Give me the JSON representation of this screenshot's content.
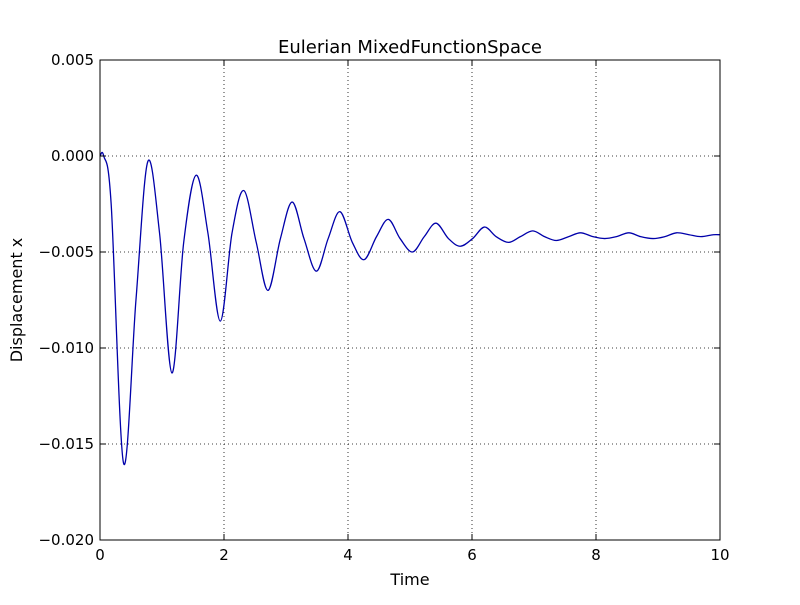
{
  "chart_data": {
    "type": "line",
    "title": "Eulerian MixedFunctionSpace",
    "xlabel": "Time",
    "ylabel": "Displacement x",
    "xlim": [
      0,
      10
    ],
    "ylim": [
      -0.02,
      0.005
    ],
    "xticks": [
      0,
      2,
      4,
      6,
      8,
      10
    ],
    "xtick_labels": [
      "0",
      "2",
      "4",
      "6",
      "8",
      "10"
    ],
    "yticks": [
      -0.02,
      -0.015,
      -0.01,
      -0.005,
      0.0,
      0.005
    ],
    "ytick_labels": [
      "−0.020",
      "−0.015",
      "−0.010",
      "−0.005",
      "0.000",
      "0.005"
    ],
    "grid": true,
    "line_color": "#0000aa",
    "x": [
      0,
      0.06,
      0.18,
      0.38,
      0.58,
      0.77,
      0.96,
      1.16,
      1.35,
      1.55,
      1.74,
      1.94,
      2.13,
      2.32,
      2.52,
      2.71,
      2.91,
      3.1,
      3.29,
      3.49,
      3.68,
      3.87,
      4.07,
      4.26,
      4.46,
      4.65,
      4.84,
      5.04,
      5.23,
      5.42,
      5.62,
      5.81,
      6.01,
      6.2,
      6.39,
      6.59,
      6.78,
      6.98,
      7.17,
      7.36,
      7.56,
      7.75,
      7.95,
      8.14,
      8.33,
      8.53,
      8.72,
      8.92,
      9.11,
      9.3,
      9.5,
      9.69,
      9.89,
      10
    ],
    "y": [
      0,
      0.0,
      -0.0025,
      -0.016,
      -0.0075,
      -0.0003,
      -0.004,
      -0.0113,
      -0.0045,
      -0.001,
      -0.004,
      -0.0086,
      -0.004,
      -0.0018,
      -0.0045,
      -0.007,
      -0.0043,
      -0.0024,
      -0.0043,
      -0.006,
      -0.0043,
      -0.0029,
      -0.0045,
      -0.0054,
      -0.0042,
      -0.0033,
      -0.0043,
      -0.005,
      -0.0042,
      -0.0035,
      -0.0043,
      -0.0047,
      -0.0043,
      -0.0037,
      -0.0042,
      -0.0045,
      -0.0042,
      -0.0039,
      -0.0042,
      -0.0044,
      -0.0042,
      -0.004,
      -0.0042,
      -0.0043,
      -0.0042,
      -0.004,
      -0.0042,
      -0.0043,
      -0.0042,
      -0.004,
      -0.0041,
      -0.0042,
      -0.0041,
      -0.0041
    ]
  }
}
